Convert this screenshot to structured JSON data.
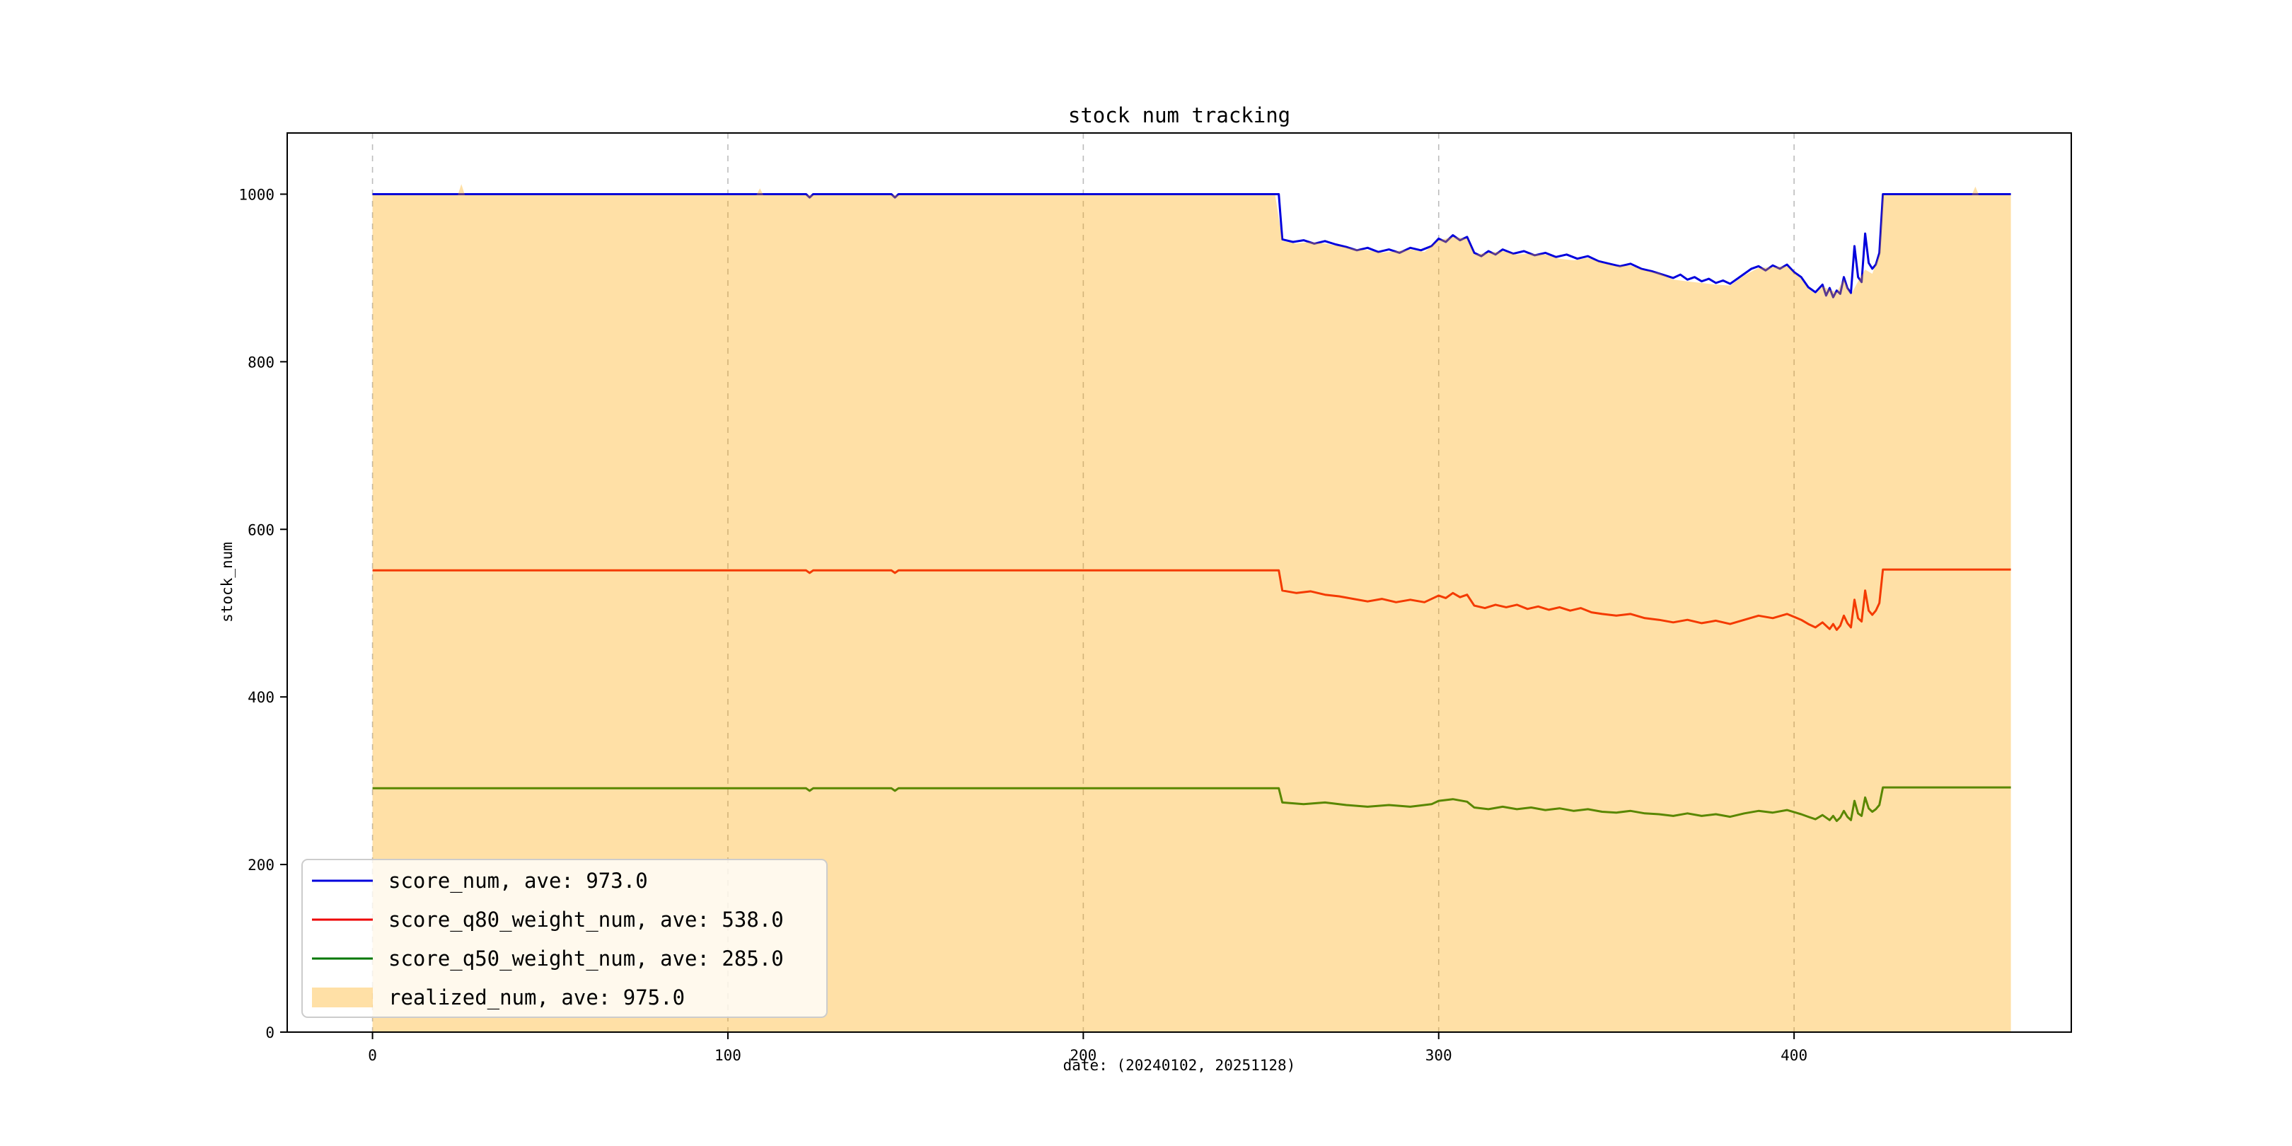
{
  "chart_data": {
    "type": "line",
    "title": "stock num tracking",
    "xlabel": "date: (20240102, 20251128)",
    "ylabel": "stock_num",
    "xlim": [
      -24,
      478
    ],
    "ylim": [
      0,
      1073
    ],
    "xticks": [
      0,
      100,
      200,
      300,
      400
    ],
    "yticks": [
      0,
      200,
      400,
      600,
      800,
      1000
    ],
    "grid": "vertical-dashed",
    "legend_position": "lower left",
    "series": [
      {
        "name": "score_num, ave: 973.0",
        "color": "#0000dd",
        "type": "line",
        "points": [
          [
            0,
            1000
          ],
          [
            122,
            1000
          ],
          [
            123,
            996
          ],
          [
            124,
            1000
          ],
          [
            146,
            1000
          ],
          [
            147,
            996
          ],
          [
            148,
            1000
          ],
          [
            255,
            1000
          ],
          [
            256,
            946
          ],
          [
            259,
            943
          ],
          [
            262,
            945
          ],
          [
            265,
            941
          ],
          [
            268,
            944
          ],
          [
            271,
            940
          ],
          [
            274,
            937
          ],
          [
            277,
            933
          ],
          [
            280,
            936
          ],
          [
            283,
            931
          ],
          [
            286,
            934
          ],
          [
            289,
            930
          ],
          [
            292,
            936
          ],
          [
            295,
            933
          ],
          [
            298,
            938
          ],
          [
            300,
            947
          ],
          [
            302,
            943
          ],
          [
            304,
            951
          ],
          [
            306,
            945
          ],
          [
            308,
            949
          ],
          [
            310,
            930
          ],
          [
            312,
            926
          ],
          [
            314,
            932
          ],
          [
            316,
            928
          ],
          [
            318,
            934
          ],
          [
            321,
            929
          ],
          [
            324,
            932
          ],
          [
            327,
            927
          ],
          [
            330,
            930
          ],
          [
            333,
            925
          ],
          [
            336,
            928
          ],
          [
            339,
            923
          ],
          [
            342,
            926
          ],
          [
            345,
            920
          ],
          [
            348,
            917
          ],
          [
            351,
            914
          ],
          [
            354,
            917
          ],
          [
            357,
            911
          ],
          [
            360,
            908
          ],
          [
            363,
            904
          ],
          [
            366,
            900
          ],
          [
            368,
            904
          ],
          [
            370,
            898
          ],
          [
            372,
            901
          ],
          [
            374,
            896
          ],
          [
            376,
            899
          ],
          [
            378,
            894
          ],
          [
            380,
            897
          ],
          [
            382,
            893
          ],
          [
            384,
            899
          ],
          [
            386,
            905
          ],
          [
            388,
            911
          ],
          [
            390,
            914
          ],
          [
            392,
            909
          ],
          [
            394,
            915
          ],
          [
            396,
            911
          ],
          [
            398,
            916
          ],
          [
            400,
            907
          ],
          [
            402,
            901
          ],
          [
            404,
            889
          ],
          [
            406,
            883
          ],
          [
            408,
            892
          ],
          [
            409,
            879
          ],
          [
            410,
            888
          ],
          [
            411,
            877
          ],
          [
            412,
            885
          ],
          [
            413,
            881
          ],
          [
            414,
            901
          ],
          [
            415,
            888
          ],
          [
            416,
            882
          ],
          [
            417,
            938
          ],
          [
            418,
            901
          ],
          [
            419,
            895
          ],
          [
            420,
            953
          ],
          [
            421,
            918
          ],
          [
            422,
            911
          ],
          [
            423,
            916
          ],
          [
            424,
            930
          ],
          [
            425,
            1000
          ],
          [
            461,
            1000
          ]
        ]
      },
      {
        "name": "score_q80_weight_num, ave: 538.0",
        "color": "#ee0000",
        "type": "line",
        "points": [
          [
            0,
            551
          ],
          [
            122,
            551
          ],
          [
            123,
            548
          ],
          [
            124,
            551
          ],
          [
            146,
            551
          ],
          [
            147,
            548
          ],
          [
            148,
            551
          ],
          [
            255,
            551
          ],
          [
            256,
            527
          ],
          [
            260,
            524
          ],
          [
            264,
            526
          ],
          [
            268,
            522
          ],
          [
            272,
            520
          ],
          [
            276,
            517
          ],
          [
            280,
            514
          ],
          [
            284,
            517
          ],
          [
            288,
            513
          ],
          [
            292,
            516
          ],
          [
            296,
            513
          ],
          [
            300,
            521
          ],
          [
            302,
            518
          ],
          [
            304,
            524
          ],
          [
            306,
            519
          ],
          [
            308,
            522
          ],
          [
            310,
            509
          ],
          [
            313,
            506
          ],
          [
            316,
            510
          ],
          [
            319,
            507
          ],
          [
            322,
            510
          ],
          [
            325,
            505
          ],
          [
            328,
            508
          ],
          [
            331,
            504
          ],
          [
            334,
            507
          ],
          [
            337,
            503
          ],
          [
            340,
            506
          ],
          [
            343,
            501
          ],
          [
            346,
            499
          ],
          [
            350,
            497
          ],
          [
            354,
            499
          ],
          [
            358,
            494
          ],
          [
            362,
            492
          ],
          [
            366,
            489
          ],
          [
            370,
            492
          ],
          [
            374,
            488
          ],
          [
            378,
            491
          ],
          [
            382,
            487
          ],
          [
            386,
            492
          ],
          [
            390,
            497
          ],
          [
            394,
            494
          ],
          [
            398,
            499
          ],
          [
            402,
            492
          ],
          [
            404,
            487
          ],
          [
            406,
            483
          ],
          [
            408,
            489
          ],
          [
            410,
            481
          ],
          [
            411,
            487
          ],
          [
            412,
            480
          ],
          [
            413,
            485
          ],
          [
            414,
            497
          ],
          [
            415,
            488
          ],
          [
            416,
            483
          ],
          [
            417,
            516
          ],
          [
            418,
            494
          ],
          [
            419,
            490
          ],
          [
            420,
            527
          ],
          [
            421,
            503
          ],
          [
            422,
            498
          ],
          [
            423,
            503
          ],
          [
            424,
            512
          ],
          [
            425,
            552
          ],
          [
            461,
            552
          ]
        ]
      },
      {
        "name": "score_q50_weight_num, ave: 285.0",
        "color": "#007700",
        "type": "line",
        "points": [
          [
            0,
            291
          ],
          [
            122,
            291
          ],
          [
            123,
            288
          ],
          [
            124,
            291
          ],
          [
            146,
            291
          ],
          [
            147,
            288
          ],
          [
            148,
            291
          ],
          [
            255,
            291
          ],
          [
            256,
            274
          ],
          [
            262,
            272
          ],
          [
            268,
            274
          ],
          [
            274,
            271
          ],
          [
            280,
            269
          ],
          [
            286,
            271
          ],
          [
            292,
            269
          ],
          [
            298,
            272
          ],
          [
            300,
            276
          ],
          [
            304,
            278
          ],
          [
            308,
            275
          ],
          [
            310,
            268
          ],
          [
            314,
            266
          ],
          [
            318,
            269
          ],
          [
            322,
            266
          ],
          [
            326,
            268
          ],
          [
            330,
            265
          ],
          [
            334,
            267
          ],
          [
            338,
            264
          ],
          [
            342,
            266
          ],
          [
            346,
            263
          ],
          [
            350,
            262
          ],
          [
            354,
            264
          ],
          [
            358,
            261
          ],
          [
            362,
            260
          ],
          [
            366,
            258
          ],
          [
            370,
            261
          ],
          [
            374,
            258
          ],
          [
            378,
            260
          ],
          [
            382,
            257
          ],
          [
            386,
            261
          ],
          [
            390,
            264
          ],
          [
            394,
            262
          ],
          [
            398,
            265
          ],
          [
            402,
            260
          ],
          [
            404,
            257
          ],
          [
            406,
            254
          ],
          [
            408,
            259
          ],
          [
            410,
            253
          ],
          [
            411,
            258
          ],
          [
            412,
            252
          ],
          [
            413,
            256
          ],
          [
            414,
            264
          ],
          [
            415,
            257
          ],
          [
            416,
            253
          ],
          [
            417,
            276
          ],
          [
            418,
            261
          ],
          [
            419,
            258
          ],
          [
            420,
            280
          ],
          [
            421,
            267
          ],
          [
            422,
            263
          ],
          [
            423,
            266
          ],
          [
            424,
            271
          ],
          [
            425,
            292
          ],
          [
            461,
            292
          ]
        ]
      },
      {
        "name": "realized_num, ave: 975.0",
        "color": "#ffa500",
        "fill_opacity": 0.35,
        "type": "area",
        "points": [
          [
            0,
            999
          ],
          [
            24,
            999
          ],
          [
            25,
            1012
          ],
          [
            26,
            999
          ],
          [
            108,
            999
          ],
          [
            109,
            1007
          ],
          [
            110,
            999
          ],
          [
            254,
            999
          ],
          [
            256,
            944
          ],
          [
            260,
            941
          ],
          [
            264,
            943
          ],
          [
            268,
            941
          ],
          [
            272,
            938
          ],
          [
            276,
            935
          ],
          [
            280,
            933
          ],
          [
            284,
            930
          ],
          [
            288,
            932
          ],
          [
            292,
            934
          ],
          [
            296,
            931
          ],
          [
            300,
            945
          ],
          [
            304,
            949
          ],
          [
            308,
            947
          ],
          [
            310,
            928
          ],
          [
            314,
            930
          ],
          [
            318,
            932
          ],
          [
            322,
            928
          ],
          [
            326,
            929
          ],
          [
            330,
            928
          ],
          [
            334,
            923
          ],
          [
            338,
            921
          ],
          [
            342,
            924
          ],
          [
            346,
            918
          ],
          [
            350,
            914
          ],
          [
            354,
            915
          ],
          [
            358,
            909
          ],
          [
            362,
            906
          ],
          [
            366,
            898
          ],
          [
            370,
            896
          ],
          [
            374,
            894
          ],
          [
            378,
            892
          ],
          [
            382,
            891
          ],
          [
            386,
            903
          ],
          [
            390,
            912
          ],
          [
            394,
            913
          ],
          [
            398,
            914
          ],
          [
            402,
            899
          ],
          [
            404,
            887
          ],
          [
            406,
            881
          ],
          [
            408,
            890
          ],
          [
            410,
            886
          ],
          [
            412,
            883
          ],
          [
            414,
            899
          ],
          [
            416,
            880
          ],
          [
            418,
            896
          ],
          [
            420,
            910
          ],
          [
            422,
            905
          ],
          [
            424,
            928
          ],
          [
            425,
            999
          ],
          [
            450,
            999
          ],
          [
            451,
            1009
          ],
          [
            452,
            999
          ],
          [
            461,
            999
          ]
        ]
      }
    ]
  }
}
